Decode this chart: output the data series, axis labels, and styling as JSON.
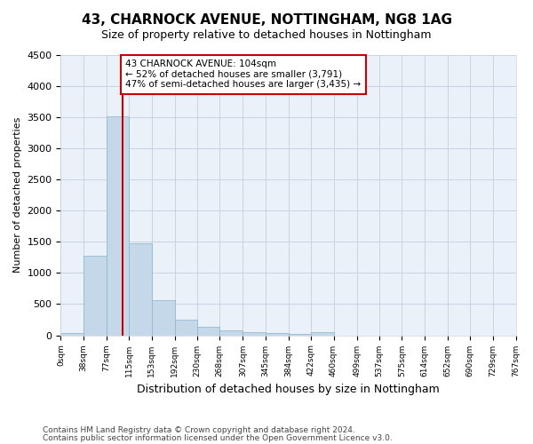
{
  "title": "43, CHARNOCK AVENUE, NOTTINGHAM, NG8 1AG",
  "subtitle": "Size of property relative to detached houses in Nottingham",
  "xlabel": "Distribution of detached houses by size in Nottingham",
  "ylabel": "Number of detached properties",
  "footnote1": "Contains HM Land Registry data © Crown copyright and database right 2024.",
  "footnote2": "Contains public sector information licensed under the Open Government Licence v3.0.",
  "annotation_line1": "43 CHARNOCK AVENUE: 104sqm",
  "annotation_line2": "← 52% of detached houses are smaller (3,791)",
  "annotation_line3": "47% of semi-detached houses are larger (3,435) →",
  "property_size": 104,
  "bar_edges": [
    0,
    38,
    77,
    115,
    153,
    192,
    230,
    268,
    307,
    345,
    384,
    422,
    460,
    499,
    537,
    575,
    614,
    652,
    690,
    729,
    767
  ],
  "bar_heights": [
    40,
    1270,
    3510,
    1480,
    570,
    250,
    140,
    80,
    55,
    35,
    20,
    50,
    0,
    0,
    0,
    0,
    0,
    0,
    0,
    0
  ],
  "bar_color": "#c5d8ea",
  "bar_edge_color": "#8ab4cc",
  "property_line_color": "#cc0000",
  "annotation_box_color": "#cc0000",
  "grid_color": "#c8d4e0",
  "plot_bg_color": "#eaf1f8",
  "background_color": "#ffffff",
  "ylim": [
    0,
    4500
  ],
  "yticks": [
    0,
    500,
    1000,
    1500,
    2000,
    2500,
    3000,
    3500,
    4000,
    4500
  ],
  "title_fontsize": 11,
  "subtitle_fontsize": 9,
  "ylabel_fontsize": 8,
  "xlabel_fontsize": 9
}
